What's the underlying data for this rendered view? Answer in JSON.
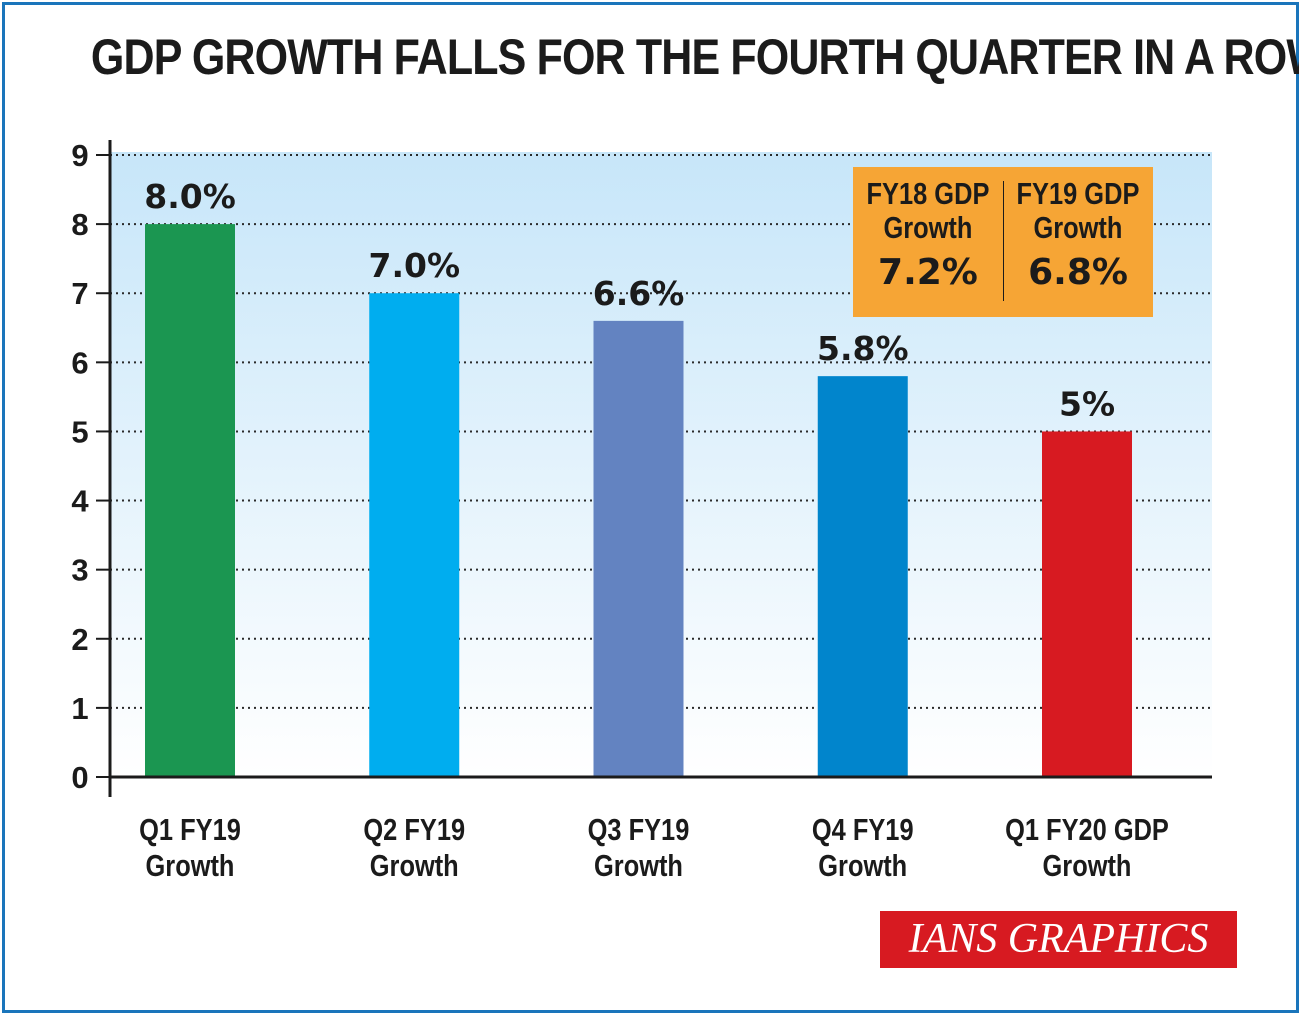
{
  "title": "GDP GROWTH FALLS FOR THE FOURTH QUARTER IN A ROW",
  "callout": {
    "left_heading_line1": "FY18 GDP",
    "left_heading_line2": "Growth",
    "left_value": "7.2%",
    "right_heading_line1": "FY19 GDP",
    "right_heading_line2": "Growth",
    "right_value": "6.8%"
  },
  "source": "IANS GRAPHICS",
  "chart_data": {
    "type": "bar",
    "categories": [
      [
        "Q1 FY19",
        "Growth"
      ],
      [
        "Q2 FY19",
        "Growth"
      ],
      [
        "Q3 FY19",
        "Growth"
      ],
      [
        "Q4 FY19",
        "Growth"
      ],
      [
        "Q1 FY20 GDP",
        "Growth"
      ]
    ],
    "values": [
      8.0,
      7.0,
      6.6,
      5.8,
      5.0
    ],
    "data_labels": [
      "8.0%",
      "7.0%",
      "6.6%",
      "5.8%",
      "5%"
    ],
    "colors": [
      "#1b9651",
      "#00adef",
      "#6383c1",
      "#0185cc",
      "#d71a21"
    ],
    "ylim": [
      0,
      9
    ],
    "yticks": [
      0,
      1,
      2,
      3,
      4,
      5,
      6,
      7,
      8,
      9
    ],
    "grid": true,
    "background_gradient": [
      "#c7e6f9",
      "#ffffff"
    ]
  }
}
